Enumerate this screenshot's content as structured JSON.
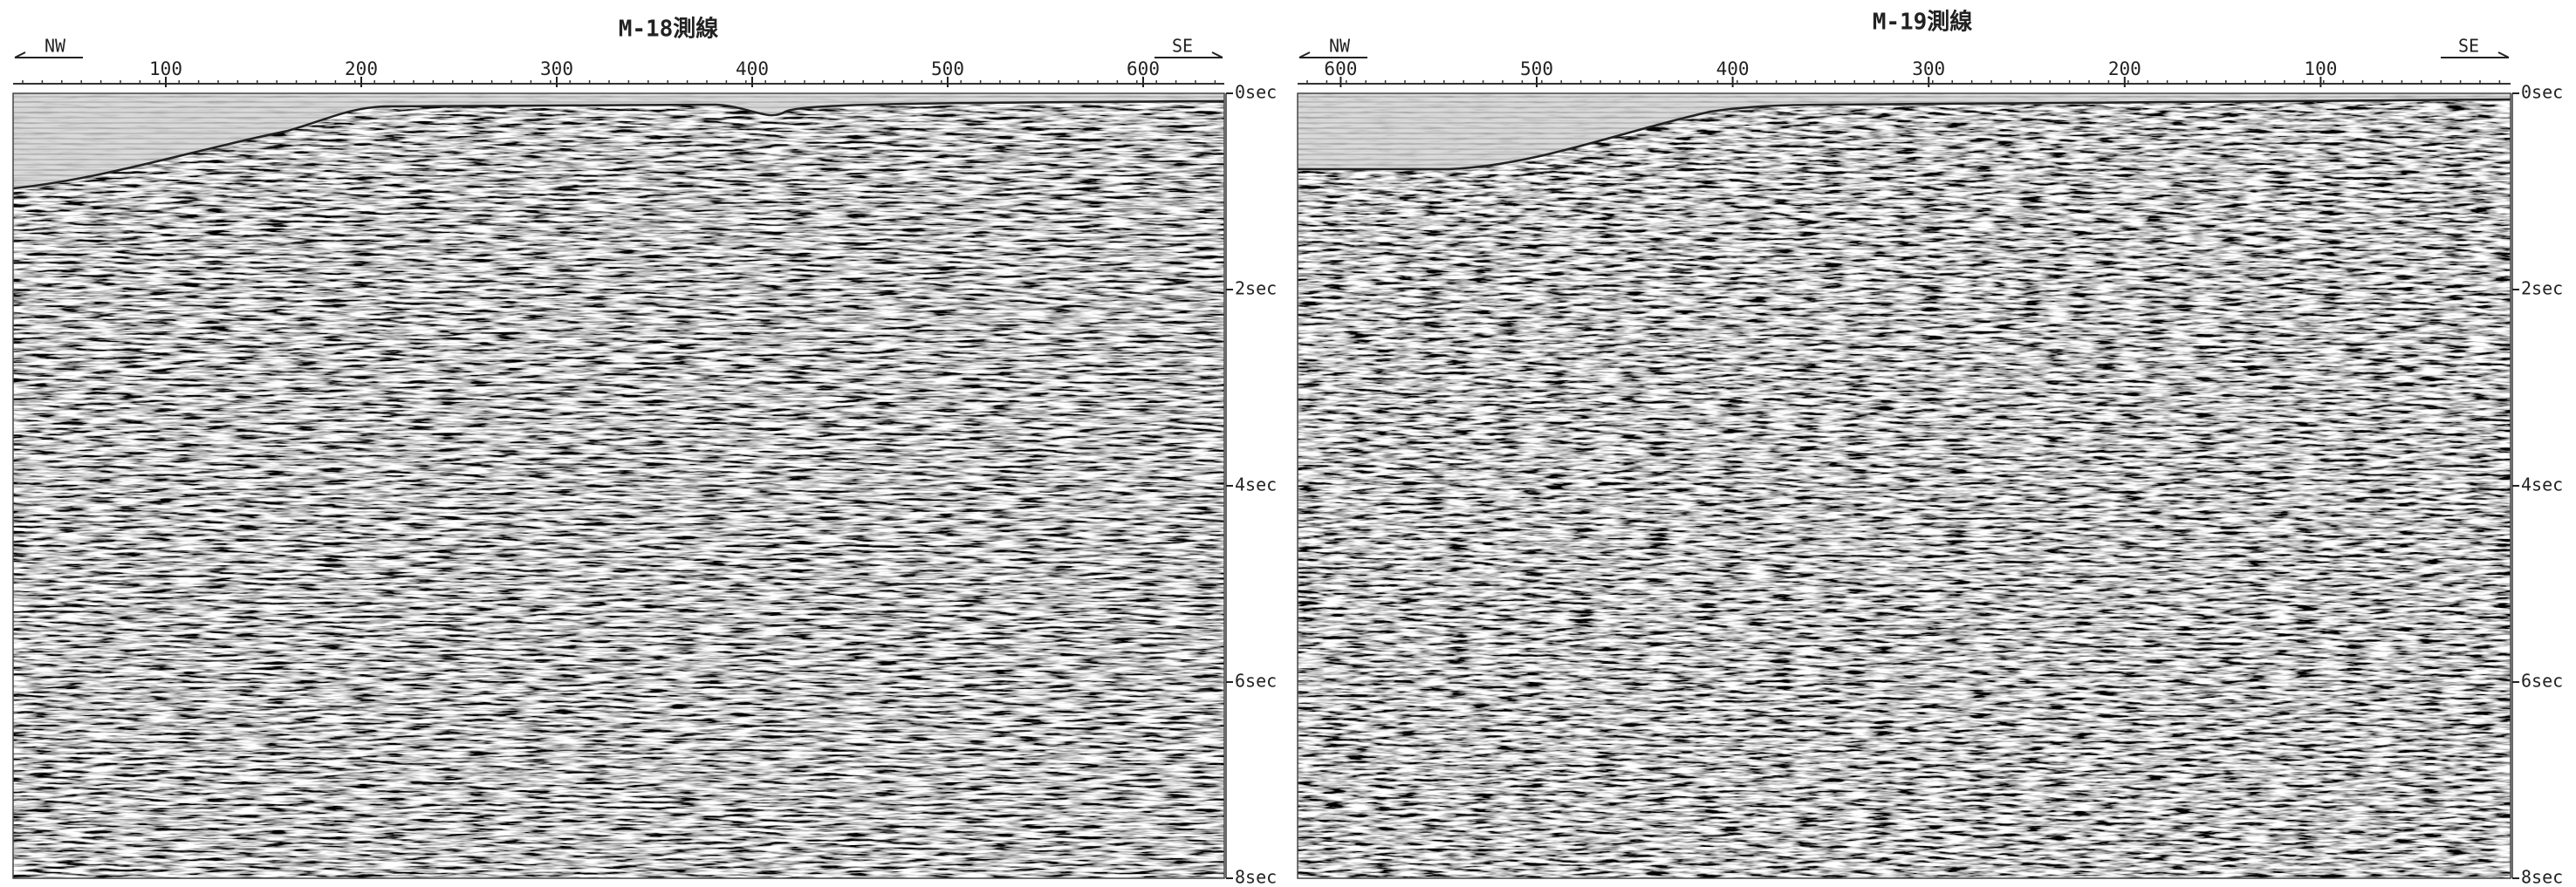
{
  "panels": [
    {
      "title": "M-18測線",
      "left_direction": "NW",
      "right_direction": "SE",
      "distance_ticks": [
        100,
        200,
        300,
        400,
        500,
        600
      ],
      "time_ticks": [
        "0sec",
        "2sec",
        "4sec",
        "6sec",
        "8sec"
      ]
    },
    {
      "title": "M-19測線",
      "left_direction": "NW",
      "right_direction": "SE",
      "distance_ticks": [
        600,
        500,
        400,
        300,
        200,
        100
      ],
      "time_ticks": [
        "0sec",
        "2sec",
        "4sec",
        "6sec",
        "8sec"
      ]
    }
  ]
}
